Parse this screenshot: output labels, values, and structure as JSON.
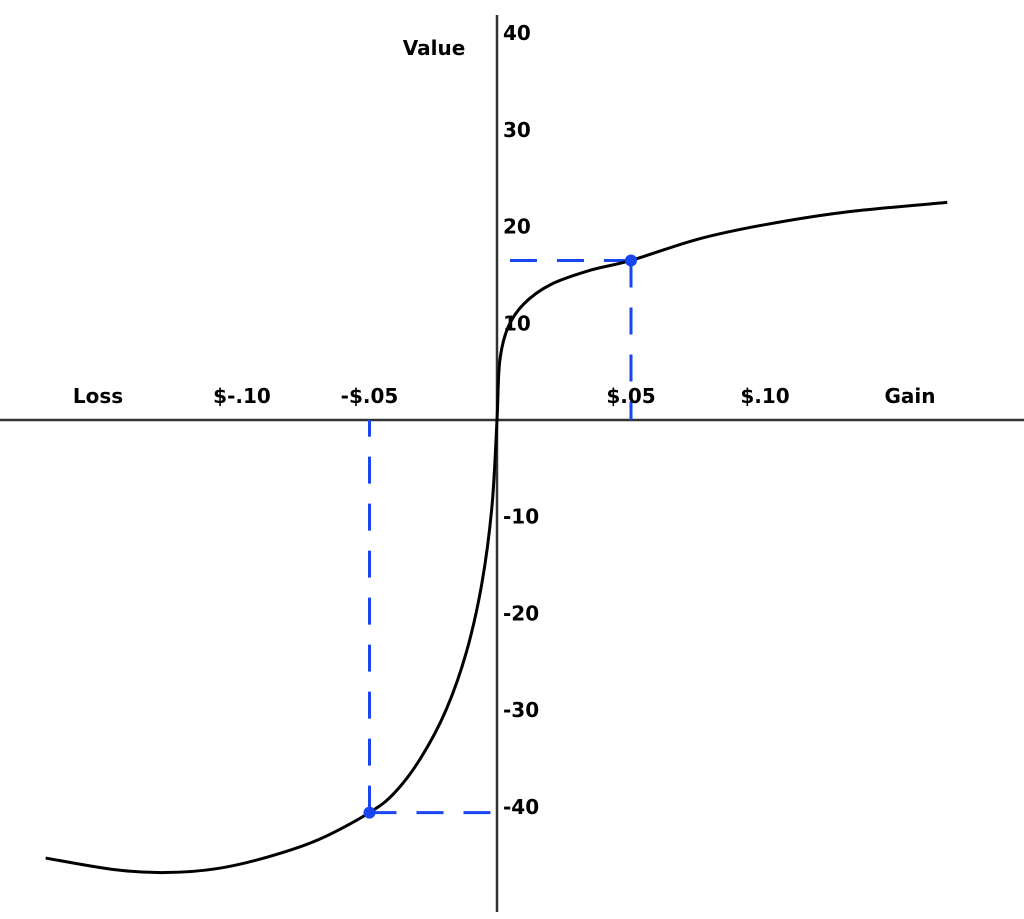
{
  "chart_data": {
    "type": "line",
    "title": "",
    "xlabel_negative": "Loss",
    "xlabel_positive": "Gain",
    "ylabel": "Value",
    "x_ticks": [
      {
        "value": -0.1,
        "label": "$-.10"
      },
      {
        "value": -0.05,
        "label": "-$.05"
      },
      {
        "value": 0.05,
        "label": "$.05"
      },
      {
        "value": 0.1,
        "label": "$.10"
      }
    ],
    "y_ticks": [
      {
        "value": 40,
        "label": "40"
      },
      {
        "value": 30,
        "label": "30"
      },
      {
        "value": 20,
        "label": "20"
      },
      {
        "value": 10,
        "label": "10"
      },
      {
        "value": -10,
        "label": "-10"
      },
      {
        "value": -20,
        "label": "-20"
      },
      {
        "value": -30,
        "label": "-30"
      },
      {
        "value": -40,
        "label": "-40"
      }
    ],
    "ylim": [
      -50,
      42
    ],
    "xlim": [
      -0.19,
      0.2
    ],
    "grid": false,
    "series": [
      {
        "color": "#000000",
        "x": [
          -0.177,
          -0.15,
          -0.13,
          -0.11,
          -0.09,
          -0.07,
          -0.05,
          -0.04,
          -0.03,
          -0.02,
          -0.012,
          -0.006,
          -0.002,
          0,
          0.001,
          0.004,
          0.01,
          0.02,
          0.035,
          0.05,
          0.075,
          0.1,
          0.13,
          0.168
        ],
        "y": [
          -45.3,
          -46.5,
          -46.8,
          -46.4,
          -45.2,
          -43.4,
          -40.6,
          -38.5,
          -35,
          -30,
          -24,
          -17,
          -9,
          0,
          6,
          9.5,
          12,
          14,
          15.5,
          16.5,
          18.7,
          20.2,
          21.5,
          22.5
        ]
      }
    ],
    "highlight_points": [
      {
        "x": 0.05,
        "y": 16.5,
        "color": "#1746f2"
      },
      {
        "x": -0.05,
        "y": -40.6,
        "color": "#1746f2"
      }
    ]
  }
}
